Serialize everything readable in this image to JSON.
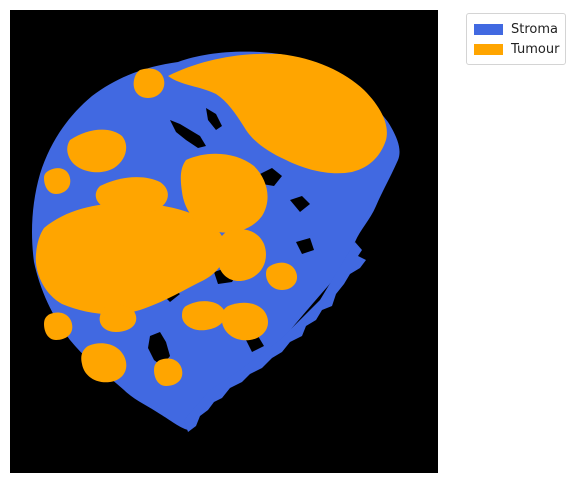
{
  "colors": {
    "background": "#000000",
    "stroma": "#4169e1",
    "tumour": "#ffa500"
  },
  "legend": {
    "entries": [
      {
        "label": "Stroma",
        "color": "#4169e1"
      },
      {
        "label": "Tumour",
        "color": "#ffa500"
      }
    ],
    "placement": "outside-top-right"
  }
}
